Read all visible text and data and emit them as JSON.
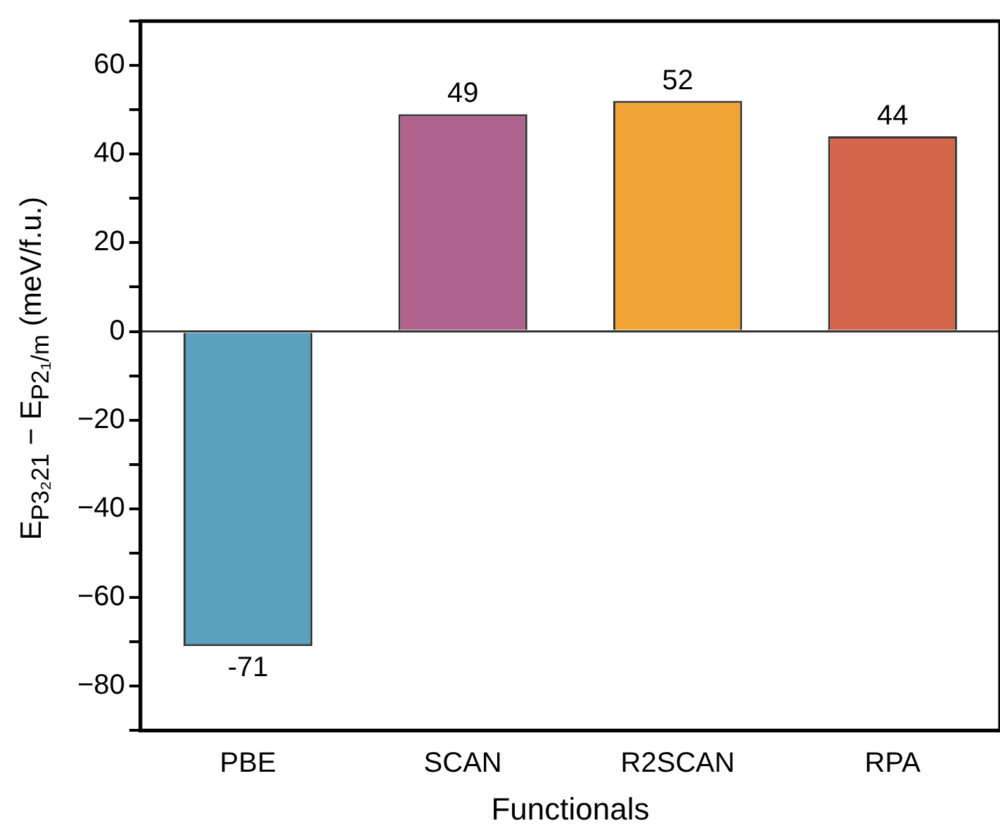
{
  "chart_data": {
    "type": "bar",
    "xlabel": "Functionals",
    "ylabel": "E$_{P3₂21}$ − E$_{P2₁/m}$ (meV/f.u.)",
    "categories": [
      "PBE",
      "SCAN",
      "R2SCAN",
      "RPA"
    ],
    "values": [
      -71,
      49,
      52,
      44
    ],
    "colors": [
      "#5aa0bf",
      "#b0638c",
      "#f2a535",
      "#d3664b"
    ],
    "data_labels": true,
    "ylim": [
      -90,
      70
    ],
    "yticks": [
      {
        "value": -90,
        "label": null
      },
      -80,
      {
        "value": -70,
        "label": null
      },
      -60,
      {
        "value": -50,
        "label": null
      },
      -40,
      {
        "value": -30,
        "label": null
      },
      -20,
      {
        "value": -10,
        "label": null
      },
      0,
      {
        "value": 10,
        "label": null
      },
      20,
      {
        "value": 30,
        "label": null
      },
      40,
      {
        "value": 50,
        "label": null
      },
      60,
      {
        "value": 70,
        "label": null
      }
    ],
    "ref_lines": [
      {
        "axis": "y",
        "value": 0,
        "color": "#333333"
      }
    ]
  }
}
